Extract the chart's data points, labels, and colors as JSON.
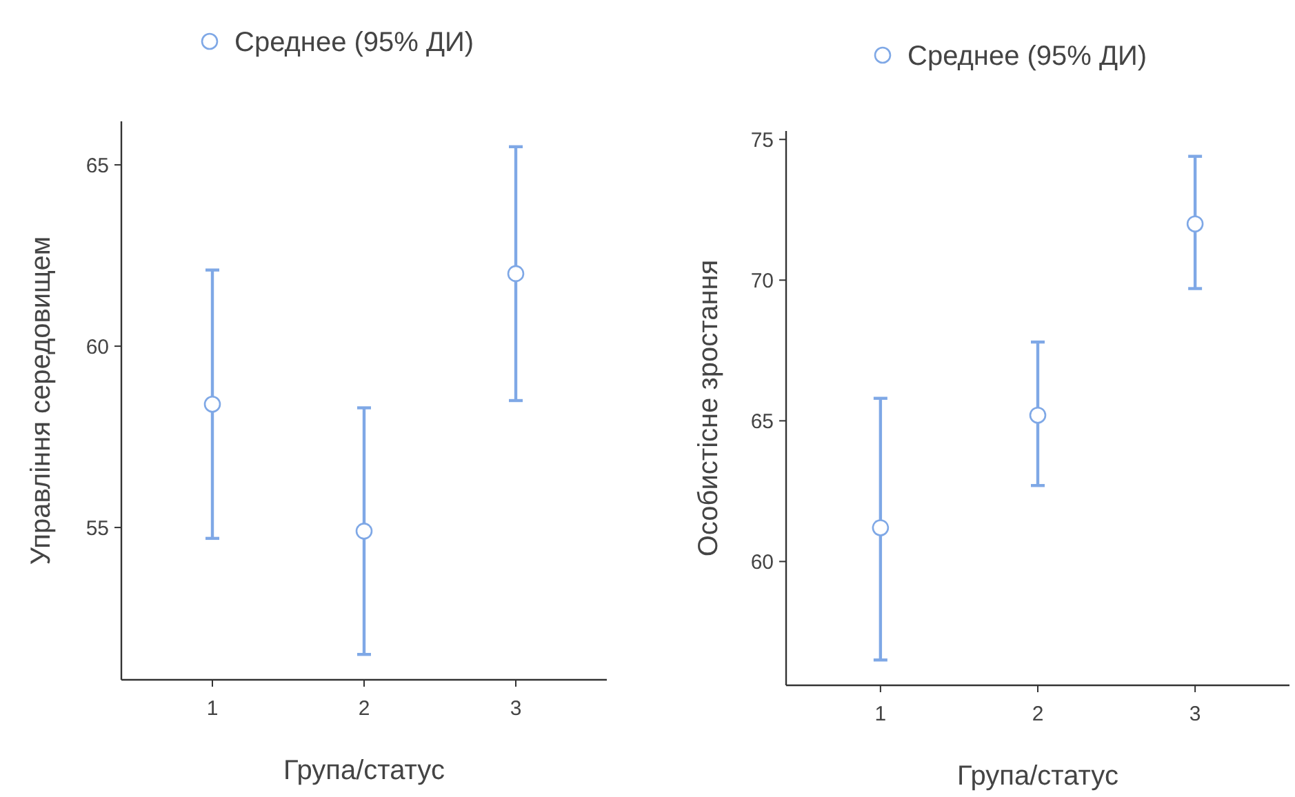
{
  "chart_data": [
    {
      "type": "scatter",
      "xlabel": "Група/статус",
      "ylabel": "Управління середовищем",
      "categories": [
        "1",
        "2",
        "3"
      ],
      "ylim": [
        50.8,
        66.2
      ],
      "yticks": [
        55,
        60,
        65
      ],
      "legend": "top",
      "marker": "circle",
      "grid": false,
      "series": [
        {
          "name": "Среднее (95% ДИ)",
          "color": "#7fa8e6",
          "values": [
            58.4,
            54.9,
            62.0
          ],
          "errors": [
            [
              54.7,
              62.1
            ],
            [
              51.5,
              58.3
            ],
            [
              58.5,
              65.5
            ]
          ]
        }
      ]
    },
    {
      "type": "scatter",
      "xlabel": "Група/статус",
      "ylabel": "Особистісне зростання",
      "categories": [
        "1",
        "2",
        "3"
      ],
      "ylim": [
        55.6,
        75.3
      ],
      "yticks": [
        60,
        65,
        70,
        75
      ],
      "legend": "top",
      "marker": "circle",
      "grid": false,
      "series": [
        {
          "name": "Среднее (95% ДИ)",
          "color": "#7fa8e6",
          "values": [
            61.2,
            65.2,
            72.0
          ],
          "errors": [
            [
              56.5,
              65.8
            ],
            [
              62.7,
              67.8
            ],
            [
              69.7,
              74.4
            ]
          ]
        }
      ]
    }
  ]
}
